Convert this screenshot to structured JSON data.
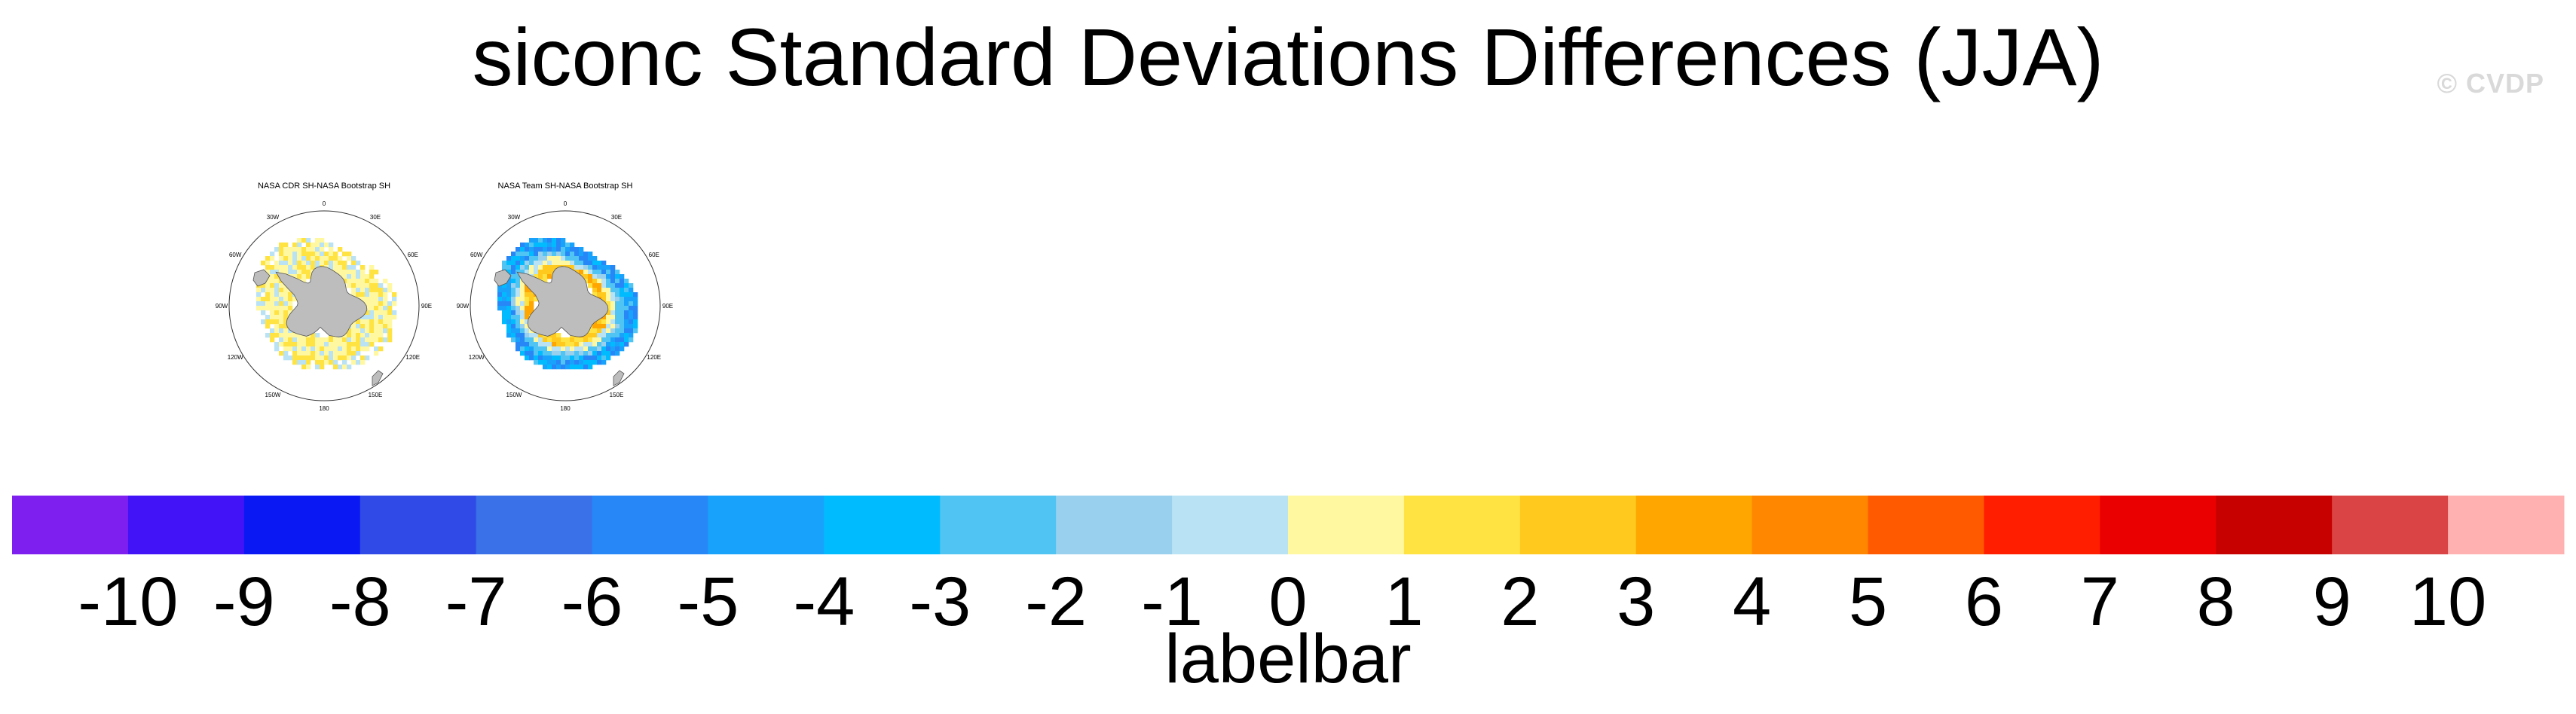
{
  "figure": {
    "title": "siconc Standard Deviations Differences (JJA)",
    "watermark": "© CVDP"
  },
  "chart_data": [
    {
      "type": "heatmap",
      "title": "NASA CDR SH-NASA Bootstrap SH",
      "projection": "south-polar-stereographic",
      "lon_labels": [
        "0",
        "30E",
        "60E",
        "90E",
        "120E",
        "150E",
        "180",
        "150W",
        "120W",
        "90W",
        "60W",
        "30W"
      ],
      "pattern": "weak positive differences (0 to 2) ring around Antarctica with a few light-blue (-2 to 0) cells",
      "value_range": [
        -2,
        2
      ]
    },
    {
      "type": "heatmap",
      "title": "NASA Team SH-NASA Bootstrap SH",
      "projection": "south-polar-stereographic",
      "lon_labels": [
        "0",
        "30E",
        "60E",
        "90E",
        "120E",
        "150E",
        "180",
        "150W",
        "120W",
        "90W",
        "60W",
        "30W"
      ],
      "pattern": "blue (-6 to -2) outer ring at the ice edge with yellow-orange (1 to 4) inner ring near the coast",
      "value_range": [
        -6,
        4
      ]
    },
    {
      "type": "colorbar",
      "title": "labelbar",
      "tick_labels": [
        "-10",
        "-9",
        "-8",
        "-7",
        "-6",
        "-5",
        "-4",
        "-3",
        "-2",
        "-1",
        "0",
        "1",
        "2",
        "3",
        "4",
        "5",
        "6",
        "7",
        "8",
        "9",
        "10"
      ],
      "colors": [
        "#7f1fef",
        "#4213f7",
        "#0a18f4",
        "#2f4ae6",
        "#3a70e8",
        "#2787f7",
        "#18a2fb",
        "#00bcff",
        "#50c4f2",
        "#99d0ed",
        "#b9e2f5",
        "#fff8a0",
        "#ffe342",
        "#ffc91e",
        "#ffa600",
        "#ff8700",
        "#ff5a00",
        "#ff1e00",
        "#ea0000",
        "#c70000",
        "#db4444",
        "#ffb0b0"
      ]
    }
  ]
}
